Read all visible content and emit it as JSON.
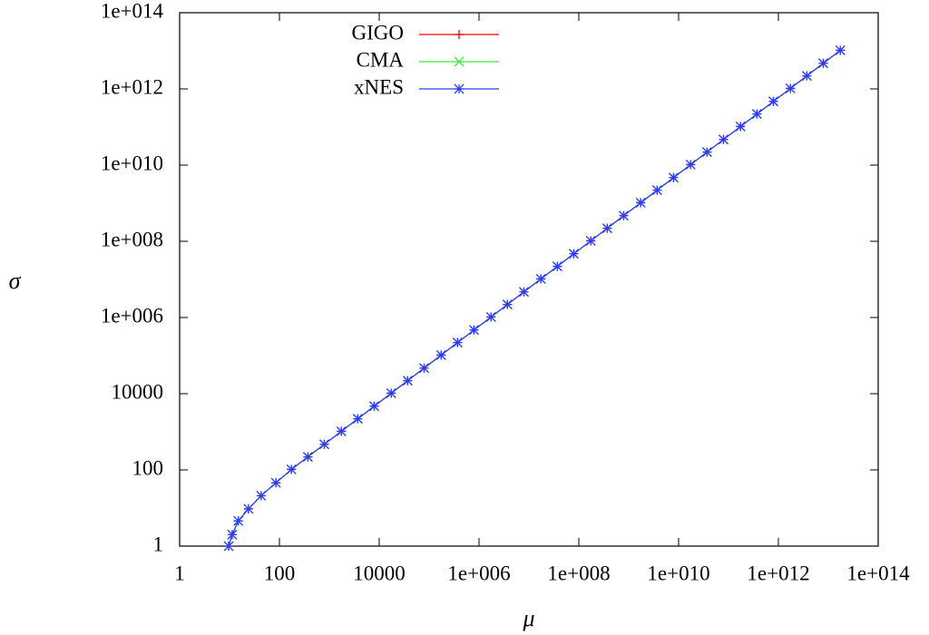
{
  "chart_data": {
    "type": "line",
    "x_label": "μ",
    "y_label": "σ",
    "x_log": true,
    "y_log": true,
    "x": [
      9.6,
      11.3,
      15,
      24,
      43,
      85,
      174.0,
      372.0,
      794.0,
      1740.0,
      3720.0,
      7940.0,
      17400.0,
      37200.0,
      79400.0,
      174000.0,
      372000.0,
      794000.0,
      1740000.0,
      3720000.0,
      7940000.0,
      17400000.0,
      37200000.0,
      79400000.0,
      174000000.0,
      372000000.0,
      794000000.0,
      1740000000.0,
      3720000000.0,
      7940000000.0,
      17400000000.0,
      37200000000.0,
      79400000000.0,
      174000000000.0,
      372000000000.0,
      794000000000.0,
      1740000000000.0,
      3720000000000.0,
      7940000000000.0,
      17400000000000.0
    ],
    "series": [
      {
        "name": "GIGO",
        "color": "#ff0000",
        "marker": "plus",
        "values": [
          1,
          2,
          4.6,
          9.5,
          21,
          46,
          103.0,
          220.0,
          470.0,
          1030.0,
          2200.0,
          4700.0,
          10300.0,
          22000.0,
          47000.0,
          103000.0,
          220000.0,
          470000.0,
          1030000.0,
          2200000.0,
          4700000.0,
          10300000.0,
          22000000.0,
          47000000.0,
          103000000.0,
          220000000.0,
          470000000.0,
          1030000000.0,
          2200000000.0,
          4700000000.0,
          10300000000.0,
          22000000000.0,
          47000000000.0,
          103000000000.0,
          220000000000.0,
          470000000000.0,
          1030000000000.0,
          2200000000000.0,
          4700000000000.0,
          10300000000000.0
        ]
      },
      {
        "name": "CMA",
        "color": "#33ee33",
        "marker": "cross",
        "values": [
          1,
          2,
          4.6,
          9.5,
          21,
          46,
          103.0,
          220.0,
          470.0,
          1030.0,
          2200.0,
          4700.0,
          10300.0,
          22000.0,
          47000.0,
          103000.0,
          220000.0,
          470000.0,
          1030000.0,
          2200000.0,
          4700000.0,
          10300000.0,
          22000000.0,
          47000000.0,
          103000000.0,
          220000000.0,
          470000000.0,
          1030000000.0,
          2200000000.0,
          4700000000.0,
          10300000000.0,
          22000000000.0,
          47000000000.0,
          103000000000.0,
          220000000000.0,
          470000000000.0,
          1030000000000.0,
          2200000000000.0,
          4700000000000.0,
          10300000000000.0
        ]
      },
      {
        "name": "xNES",
        "color": "#2a3cff",
        "marker": "star",
        "values": [
          1,
          2,
          4.6,
          9.5,
          21,
          46,
          103.0,
          220.0,
          470.0,
          1030.0,
          2200.0,
          4700.0,
          10300.0,
          22000.0,
          47000.0,
          103000.0,
          220000.0,
          470000.0,
          1030000.0,
          2200000.0,
          4700000.0,
          10300000.0,
          22000000.0,
          47000000.0,
          103000000.0,
          220000000.0,
          470000000.0,
          1030000000.0,
          2200000000.0,
          4700000000.0,
          10300000000.0,
          22000000000.0,
          47000000000.0,
          103000000000.0,
          220000000000.0,
          470000000000.0,
          1030000000000.0,
          2200000000000.0,
          4700000000000.0,
          10300000000000.0
        ]
      }
    ],
    "xlim": [
      1,
      100000000000000
    ],
    "ylim": [
      1,
      100000000000000
    ],
    "xticks": [
      1,
      100,
      10000,
      {
        "value": 1000000,
        "label": "1e+006"
      },
      {
        "value": 100000000,
        "label": "1e+008"
      },
      {
        "value": 10000000000,
        "label": "1e+010"
      },
      {
        "value": 1000000000000,
        "label": "1e+012"
      },
      {
        "value": 100000000000000,
        "label": "1e+014"
      }
    ],
    "yticks": [
      1,
      100,
      10000,
      {
        "value": 1000000,
        "label": "1e+006"
      },
      {
        "value": 100000000,
        "label": "1e+008"
      },
      {
        "value": 10000000000,
        "label": "1e+010"
      },
      {
        "value": 1000000000000,
        "label": "1e+012"
      },
      {
        "value": 100000000000000,
        "label": "1e+014"
      }
    ],
    "grid": false,
    "legend": "top-left"
  }
}
